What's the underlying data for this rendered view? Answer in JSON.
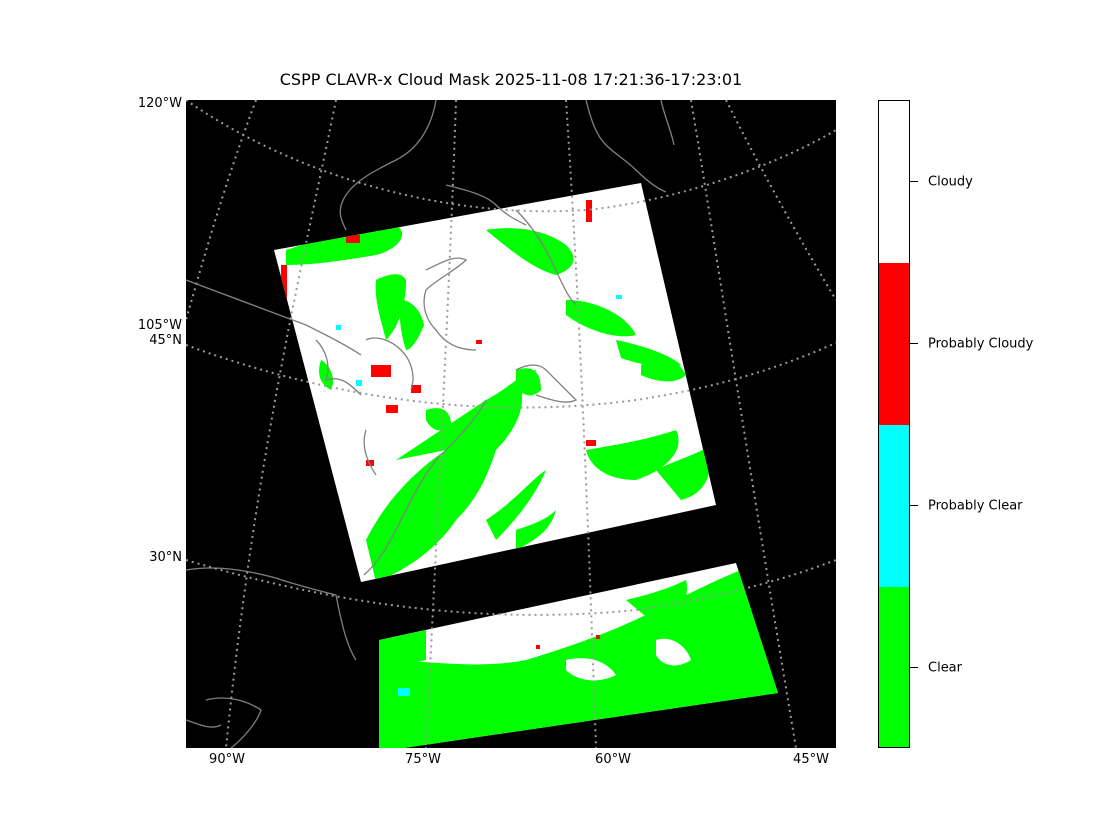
{
  "title": "CSPP CLAVR-x Cloud Mask 2025-11-08 17:21:36-17:23:01",
  "map": {
    "lat_labels": [
      "45°N",
      "30°N"
    ],
    "lon_labels_left": [
      "120°W",
      "105°W"
    ],
    "lon_labels_bottom": [
      "90°W",
      "75°W",
      "60°W",
      "45°W"
    ],
    "background_color": "#000000",
    "coastline_color": "#808080",
    "gridline_color": "#9a9a9a",
    "gridline_style": "dotted"
  },
  "colorbar": {
    "categories": [
      {
        "label": "Cloudy",
        "color": "#ffffff"
      },
      {
        "label": "Probably Cloudy",
        "color": "#ff0000"
      },
      {
        "label": "Probably Clear",
        "color": "#00ffff"
      },
      {
        "label": "Clear",
        "color": "#00ff00"
      }
    ]
  }
}
